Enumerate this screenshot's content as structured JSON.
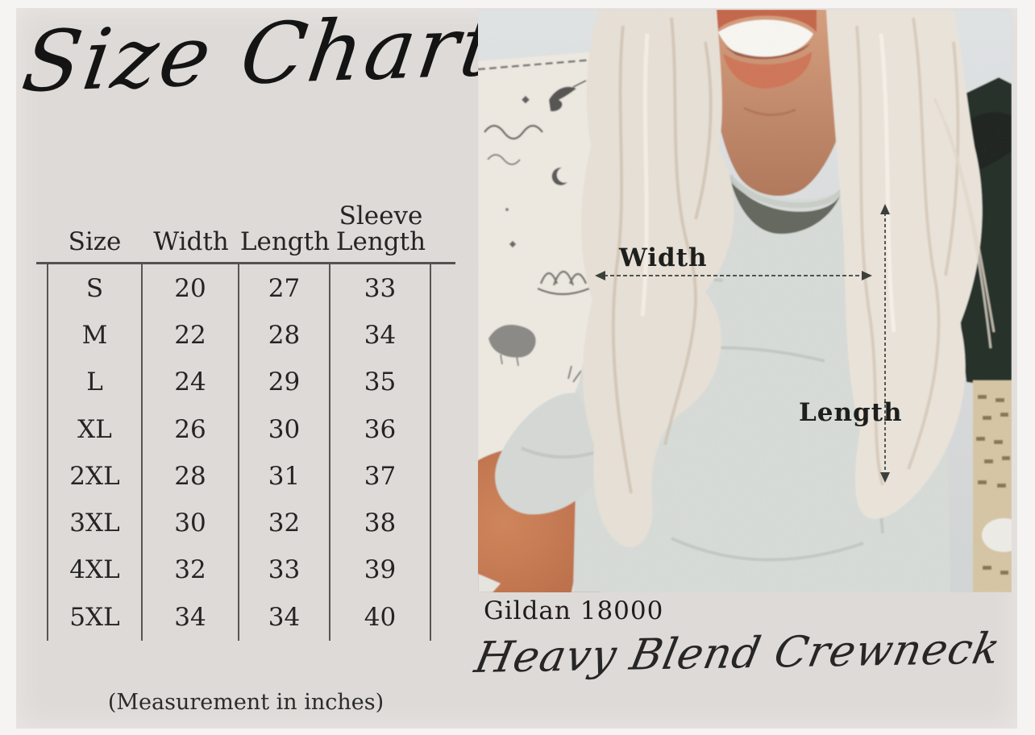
{
  "page": {
    "background_color": "#dedad7",
    "frame_color": "#f5f4f2",
    "ink_color": "#2a2a2a"
  },
  "left_panel": {
    "title": "Size Chart",
    "footnote": "(Measurement in inches)"
  },
  "size_table": {
    "columns": [
      "Size",
      "Width",
      "Length",
      "Sleeve Length"
    ],
    "rows": [
      [
        "S",
        "20",
        "27",
        "33"
      ],
      [
        "M",
        "22",
        "28",
        "34"
      ],
      [
        "L",
        "24",
        "29",
        "35"
      ],
      [
        "XL",
        "26",
        "30",
        "36"
      ],
      [
        "2XL",
        "28",
        "31",
        "37"
      ],
      [
        "3XL",
        "30",
        "32",
        "38"
      ],
      [
        "4XL",
        "32",
        "33",
        "39"
      ],
      [
        "5XL",
        "34",
        "34",
        "40"
      ]
    ]
  },
  "photo": {
    "width_annotation": "Width",
    "length_annotation": "Length",
    "colors": {
      "photo_background": "#d9dcdd",
      "sweatshirt_grey": "#dadeda",
      "hair_blonde": "#e7e0d6",
      "skin_tone": "#c88e6d",
      "denim_dark": "#474a4d",
      "chair_dark_green": "#232d26",
      "tapestry_cream": "#ede9e1",
      "annotation_ink": "#3c403c"
    }
  },
  "captions": {
    "model": "Gildan 18000",
    "product_name": "Heavy Blend Crewneck"
  },
  "chart_data": {
    "type": "table",
    "title": "Size Chart",
    "columns": [
      "Size",
      "Width",
      "Length",
      "Sleeve Length"
    ],
    "rows": [
      [
        "S",
        20,
        27,
        33
      ],
      [
        "M",
        22,
        28,
        34
      ],
      [
        "L",
        24,
        29,
        35
      ],
      [
        "XL",
        26,
        30,
        36
      ],
      [
        "2XL",
        28,
        31,
        37
      ],
      [
        "3XL",
        30,
        32,
        38
      ],
      [
        "4XL",
        32,
        33,
        39
      ],
      [
        "5XL",
        34,
        34,
        40
      ]
    ],
    "units_note": "(Measurement in inches)"
  }
}
